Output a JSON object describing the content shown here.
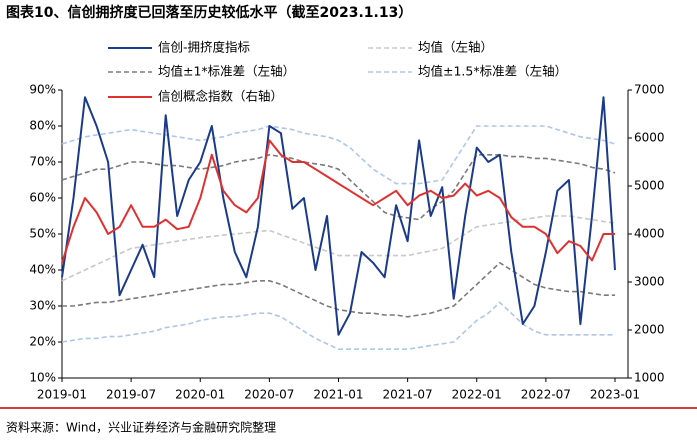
{
  "chart_data": {
    "type": "line",
    "title": "图表10、信创拥挤度已回落至历史较低水平（截至2023.1.13）",
    "source": "资料来源：Wind，兴业证券经济与金融研究院整理",
    "categories": [
      "2019-01",
      null,
      null,
      null,
      null,
      null,
      "2019-07",
      null,
      null,
      null,
      null,
      null,
      "2020-01",
      null,
      null,
      null,
      null,
      null,
      "2020-07",
      null,
      null,
      null,
      null,
      null,
      "2021-01",
      null,
      null,
      null,
      null,
      null,
      "2021-07",
      null,
      null,
      null,
      null,
      null,
      "2022-01",
      null,
      null,
      null,
      null,
      null,
      "2022-07",
      null,
      null,
      null,
      null,
      null,
      "2023-01"
    ],
    "ylim": [
      10,
      90
    ],
    "yticks": [
      {
        "value": 10,
        "label": "10%"
      },
      {
        "value": 20,
        "label": "20%"
      },
      {
        "value": 30,
        "label": "30%"
      },
      {
        "value": 40,
        "label": "40%"
      },
      {
        "value": 50,
        "label": "50%"
      },
      {
        "value": 60,
        "label": "60%"
      },
      {
        "value": 70,
        "label": "70%"
      },
      {
        "value": 80,
        "label": "80%"
      },
      {
        "value": 90,
        "label": "90%"
      }
    ],
    "y2lim": [
      1000,
      7000
    ],
    "y2ticks": [
      1000,
      2000,
      3000,
      4000,
      5000,
      6000,
      7000
    ],
    "series": [
      {
        "name": "信创-拥挤度指标",
        "color": "#1a3a8c",
        "width": 2,
        "values": [
          38,
          60,
          88,
          80,
          70,
          33,
          40,
          47,
          38,
          83,
          55,
          65,
          70,
          80,
          60,
          45,
          38,
          52,
          80,
          78,
          57,
          60,
          40,
          55,
          22,
          28,
          45,
          42,
          38,
          58,
          48,
          76,
          55,
          63,
          32,
          55,
          74,
          70,
          72,
          45,
          25,
          30,
          45,
          62,
          65,
          25,
          55,
          88,
          40
        ]
      },
      {
        "name": "均值（左轴）",
        "color": "#c8c8c8",
        "dashed": true,
        "values": [
          37,
          38.5,
          40,
          41.5,
          43,
          44.5,
          46,
          46.5,
          47,
          47.5,
          48,
          48.5,
          49,
          49.3,
          49.7,
          50,
          50.3,
          50.7,
          51,
          49.8,
          48.7,
          47.5,
          46.3,
          45.2,
          44,
          44,
          44,
          44,
          44,
          44,
          44,
          44.7,
          45.3,
          46,
          48,
          50,
          52,
          52.5,
          53,
          53.5,
          54,
          54.5,
          55,
          55,
          55,
          54.5,
          54,
          53.5,
          53
        ]
      },
      {
        "name": "均值±1*标准差（左轴）",
        "color": "#7a7a7a",
        "dashed": true,
        "upper": [
          65,
          66,
          67,
          68,
          68,
          69,
          70,
          70,
          69.5,
          69,
          69,
          68.5,
          68,
          68.5,
          69,
          70,
          70.5,
          71,
          72,
          71.5,
          71,
          70,
          69.5,
          69,
          68,
          65,
          62,
          59,
          56,
          55,
          54.5,
          54,
          57,
          59,
          62,
          67,
          72,
          72,
          72,
          71.5,
          71.5,
          71,
          71,
          70.5,
          70,
          69.5,
          68.5,
          68,
          67
        ],
        "lower": [
          30,
          30,
          30.5,
          31,
          31,
          31.5,
          32,
          32.5,
          33,
          33.5,
          34,
          34.5,
          35,
          35.5,
          36,
          36,
          36.5,
          37,
          37,
          36,
          34.5,
          33,
          31.5,
          30,
          29,
          28.5,
          28,
          28,
          27.5,
          27.5,
          27,
          27.5,
          28,
          29,
          30,
          33,
          36,
          39,
          42,
          40,
          38,
          36,
          35,
          34.5,
          34,
          34,
          33.5,
          33,
          33
        ]
      },
      {
        "name": "均值±1.5*标准差（左轴）",
        "color": "#aec6e8",
        "dashed": true,
        "upper": [
          75,
          76,
          77,
          77.5,
          78,
          78.5,
          79,
          78.5,
          78,
          77.5,
          77,
          76.5,
          76,
          76.5,
          77,
          78,
          78.5,
          79,
          80,
          79.5,
          79,
          78,
          77.5,
          77,
          76,
          74,
          71,
          68,
          66,
          64,
          64,
          64,
          64.5,
          65,
          70,
          75,
          80,
          80,
          80,
          80,
          80,
          80,
          80,
          79,
          78,
          77,
          76.5,
          76,
          75
        ],
        "lower": [
          20,
          20.5,
          21,
          21,
          21.5,
          21.5,
          22,
          22.5,
          23,
          24,
          24.5,
          25,
          26,
          26.5,
          27,
          27,
          27.5,
          28,
          28,
          27,
          25,
          23,
          21,
          19.5,
          18,
          18,
          18,
          18,
          18,
          18,
          18,
          18.5,
          19,
          19.5,
          20,
          23,
          26,
          28,
          31,
          28,
          25,
          23,
          22,
          22,
          22,
          22,
          22,
          22,
          22
        ]
      },
      {
        "name": "信创概念指数（右轴）",
        "color": "#e03131",
        "width": 2,
        "axis": "y2",
        "values": [
          3400,
          4150,
          4750,
          4450,
          4000,
          4150,
          4600,
          4150,
          4150,
          4300,
          4100,
          4150,
          4750,
          5650,
          4900,
          4600,
          4450,
          4750,
          5950,
          5650,
          5500,
          5500,
          5350,
          5200,
          5050,
          4900,
          4750,
          4600,
          4750,
          4900,
          4600,
          4800,
          4900,
          4750,
          4800,
          5050,
          4800,
          4900,
          4750,
          4350,
          4150,
          4150,
          4000,
          3600,
          3850,
          3750,
          3450,
          4000,
          4000
        ]
      }
    ]
  }
}
